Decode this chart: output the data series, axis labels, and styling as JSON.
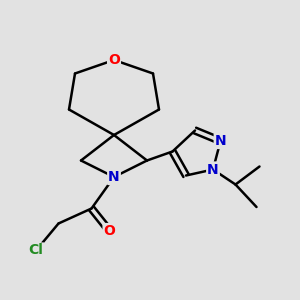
{
  "bg_color": "#e2e2e2",
  "bond_color": "#000000",
  "bond_width": 1.8,
  "atom_colors": {
    "O_top": "#ff0000",
    "O_carbonyl": "#ff0000",
    "N_azetidine": "#0000cc",
    "N1_pyrazole": "#0000cc",
    "N2_pyrazole": "#0000cc",
    "Cl": "#228b22"
  },
  "figsize": [
    3.0,
    3.0
  ],
  "dpi": 100,
  "xlim": [
    0,
    10
  ],
  "ylim": [
    0,
    10
  ]
}
